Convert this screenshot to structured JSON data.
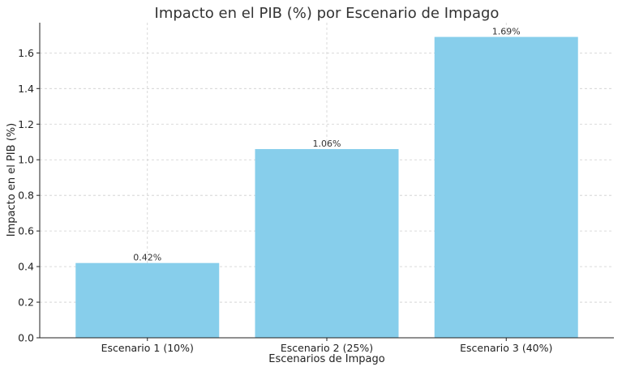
{
  "chart_data": {
    "type": "bar",
    "title": "Impacto en el PIB (%) por Escenario de Impago",
    "xlabel": "Escenarios de Impago",
    "ylabel": "Impacto en el PIB (%)",
    "categories": [
      "Escenario 1 (10%)",
      "Escenario 2 (25%)",
      "Escenario 3 (40%)"
    ],
    "values": [
      0.42,
      1.06,
      1.69
    ],
    "data_labels": [
      "0.42%",
      "1.06%",
      "1.69%"
    ],
    "ylim": [
      0,
      1.77
    ],
    "yticks": [
      0.0,
      0.2,
      0.4,
      0.6,
      0.8,
      1.0,
      1.2,
      1.4,
      1.6
    ],
    "ytick_labels": [
      "0.0",
      "0.2",
      "0.4",
      "0.6",
      "0.8",
      "1.0",
      "1.2",
      "1.4",
      "1.6"
    ],
    "grid": true,
    "bar_color": "#87CEEB"
  }
}
